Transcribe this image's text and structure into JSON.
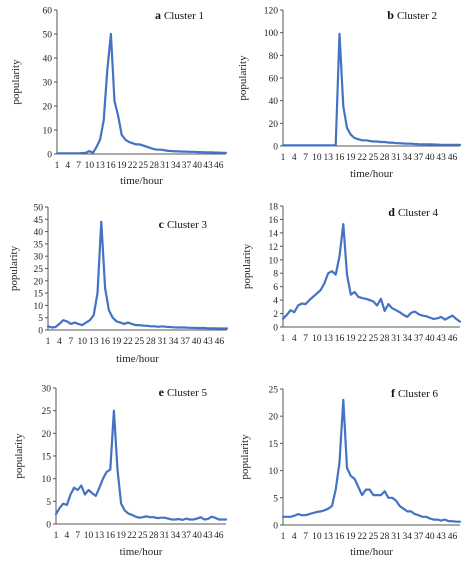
{
  "colors": {
    "line": "#4472C4",
    "axis": "#555555",
    "text": "#222222"
  },
  "chart_data": [
    {
      "type": "line",
      "letter": "a",
      "title": "Cluster 1",
      "xlabel": "time/hour",
      "ylabel": "popularity",
      "ylim": [
        0,
        60
      ],
      "yticks": [
        0,
        10,
        20,
        30,
        40,
        50,
        60
      ],
      "categories": [
        "1",
        "4",
        "7",
        "10",
        "13",
        "16",
        "19",
        "22",
        "25",
        "28",
        "31",
        "34",
        "37",
        "40",
        "43",
        "46"
      ],
      "x": [
        1,
        2,
        3,
        4,
        5,
        6,
        7,
        8,
        9,
        10,
        11,
        12,
        13,
        14,
        15,
        16,
        17,
        18,
        19,
        20,
        21,
        22,
        23,
        24,
        25,
        26,
        27,
        28,
        29,
        30,
        31,
        32,
        33,
        34,
        35,
        36,
        37,
        38,
        39,
        40,
        41,
        42,
        43,
        44,
        45,
        46,
        47,
        48
      ],
      "series": [
        {
          "values": [
            0.3,
            0.3,
            0.3,
            0.3,
            0.3,
            0.3,
            0.3,
            0.4,
            0.5,
            1.2,
            0.5,
            3,
            6,
            14,
            35,
            50,
            22,
            16,
            8,
            6,
            5,
            4.5,
            4,
            4,
            3.5,
            3,
            2.5,
            2,
            1.8,
            1.8,
            1.5,
            1.3,
            1.2,
            1.1,
            1.1,
            1,
            1,
            0.9,
            0.9,
            0.8,
            0.8,
            0.7,
            0.7,
            0.7,
            0.6,
            0.6,
            0.5,
            0.5
          ]
        }
      ]
    },
    {
      "type": "line",
      "letter": "b",
      "title": "Cluster 2",
      "xlabel": "time/hour",
      "ylabel": "popularity",
      "ylim": [
        0,
        120
      ],
      "yticks": [
        0,
        20,
        40,
        60,
        80,
        100,
        120
      ],
      "categories": [
        "1",
        "4",
        "7",
        "10",
        "13",
        "16",
        "19",
        "22",
        "25",
        "28",
        "31",
        "34",
        "37",
        "40",
        "43",
        "46"
      ],
      "x": [
        1,
        2,
        3,
        4,
        5,
        6,
        7,
        8,
        9,
        10,
        11,
        12,
        13,
        14,
        15,
        16,
        17,
        18,
        19,
        20,
        21,
        22,
        23,
        24,
        25,
        26,
        27,
        28,
        29,
        30,
        31,
        32,
        33,
        34,
        35,
        36,
        37,
        38,
        39,
        40,
        41,
        42,
        43,
        44,
        45,
        46,
        47,
        48
      ],
      "series": [
        {
          "values": [
            0.5,
            0.5,
            0.5,
            0.5,
            0.5,
            0.5,
            0.5,
            0.5,
            0.5,
            0.5,
            0.5,
            0.5,
            0.5,
            0.5,
            0.5,
            99,
            35,
            16,
            10,
            7,
            6,
            5,
            5,
            4.5,
            4,
            4,
            3.5,
            3.5,
            3,
            3,
            2.5,
            2.5,
            2.2,
            2,
            2,
            1.8,
            1.6,
            1.5,
            1.5,
            1.4,
            1.3,
            1.2,
            1.1,
            1.1,
            1,
            1,
            1,
            1
          ]
        }
      ]
    },
    {
      "type": "line",
      "letter": "c",
      "title": "Cluster 3",
      "xlabel": "time/hour",
      "ylabel": "popularity",
      "ylim": [
        0,
        50
      ],
      "yticks": [
        0,
        5,
        10,
        15,
        20,
        25,
        30,
        35,
        40,
        45,
        50
      ],
      "categories": [
        "1",
        "4",
        "7",
        "10",
        "13",
        "16",
        "19",
        "22",
        "25",
        "28",
        "31",
        "34",
        "37",
        "40",
        "43",
        "46"
      ],
      "x": [
        1,
        2,
        3,
        4,
        5,
        6,
        7,
        8,
        9,
        10,
        11,
        12,
        13,
        14,
        15,
        16,
        17,
        18,
        19,
        20,
        21,
        22,
        23,
        24,
        25,
        26,
        27,
        28,
        29,
        30,
        31,
        32,
        33,
        34,
        35,
        36,
        37,
        38,
        39,
        40,
        41,
        42,
        43,
        44,
        45,
        46,
        47,
        48
      ],
      "series": [
        {
          "values": [
            1.5,
            1,
            1.2,
            2.5,
            4,
            3.5,
            2.5,
            3,
            2.5,
            2,
            3,
            4,
            6,
            15,
            44,
            17,
            8,
            5,
            3.5,
            3,
            2.5,
            3,
            2.5,
            2,
            2,
            1.8,
            1.7,
            1.5,
            1.5,
            1.3,
            1.5,
            1.3,
            1.2,
            1.1,
            1,
            1,
            1,
            0.9,
            0.9,
            0.8,
            0.8,
            0.8,
            0.7,
            0.7,
            0.7,
            0.6,
            0.6,
            0.6
          ]
        }
      ]
    },
    {
      "type": "line",
      "letter": "d",
      "title": "Cluster 4",
      "xlabel": "",
      "ylabel": "popularity",
      "ylim": [
        0,
        18
      ],
      "yticks": [
        0,
        2,
        4,
        6,
        8,
        10,
        12,
        14,
        16,
        18
      ],
      "categories": [
        "1",
        "4",
        "7",
        "10",
        "13",
        "16",
        "19",
        "22",
        "25",
        "28",
        "31",
        "34",
        "37",
        "40",
        "43",
        "46"
      ],
      "x": [
        1,
        2,
        3,
        4,
        5,
        6,
        7,
        8,
        9,
        10,
        11,
        12,
        13,
        14,
        15,
        16,
        17,
        18,
        19,
        20,
        21,
        22,
        23,
        24,
        25,
        26,
        27,
        28,
        29,
        30,
        31,
        32,
        33,
        34,
        35,
        36,
        37,
        38,
        39,
        40,
        41,
        42,
        43,
        44,
        45,
        46,
        47,
        48
      ],
      "series": [
        {
          "values": [
            1.2,
            1.8,
            2.5,
            2.2,
            3.2,
            3.5,
            3.4,
            4,
            4.5,
            5,
            5.5,
            6.5,
            8,
            8.3,
            7.8,
            10.5,
            15.3,
            7.8,
            4.8,
            5.2,
            4.5,
            4.3,
            4.2,
            4,
            3.8,
            3.2,
            4.2,
            2.4,
            3.4,
            2.8,
            2.5,
            2.2,
            1.8,
            1.5,
            2.1,
            2.3,
            1.9,
            1.7,
            1.6,
            1.4,
            1.2,
            1.3,
            1.5,
            1.1,
            1.4,
            1.7,
            1.2,
            0.8
          ]
        }
      ]
    },
    {
      "type": "line",
      "letter": "e",
      "title": "Cluster 5",
      "xlabel": "time/hour",
      "ylabel": "popularity",
      "ylim": [
        0,
        30
      ],
      "yticks": [
        0,
        5,
        10,
        15,
        20,
        25,
        30
      ],
      "categories": [
        "1",
        "4",
        "7",
        "10",
        "13",
        "16",
        "19",
        "22",
        "25",
        "28",
        "31",
        "34",
        "37",
        "40",
        "43",
        "46"
      ],
      "x": [
        1,
        2,
        3,
        4,
        5,
        6,
        7,
        8,
        9,
        10,
        11,
        12,
        13,
        14,
        15,
        16,
        17,
        18,
        19,
        20,
        21,
        22,
        23,
        24,
        25,
        26,
        27,
        28,
        29,
        30,
        31,
        32,
        33,
        34,
        35,
        36,
        37,
        38,
        39,
        40,
        41,
        42,
        43,
        44,
        45,
        46,
        47,
        48
      ],
      "series": [
        {
          "values": [
            2.2,
            3.5,
            4.5,
            4.2,
            6.5,
            8,
            7.5,
            8.5,
            6.5,
            7.5,
            6.8,
            6.2,
            8,
            10,
            11.5,
            12,
            25,
            12,
            4.5,
            3,
            2.3,
            2,
            1.6,
            1.4,
            1.5,
            1.7,
            1.5,
            1.5,
            1.3,
            1.4,
            1.4,
            1.2,
            1,
            1,
            1.1,
            0.9,
            1.2,
            1,
            1,
            1.2,
            1.5,
            1,
            1.1,
            1.6,
            1.4,
            1,
            1,
            1
          ]
        }
      ]
    },
    {
      "type": "line",
      "letter": "f",
      "title": "Cluster 6",
      "xlabel": "time/hour",
      "ylabel": "popularity",
      "ylim": [
        0,
        25
      ],
      "yticks": [
        0,
        5,
        10,
        15,
        20,
        25
      ],
      "categories": [
        "1",
        "4",
        "7",
        "10",
        "13",
        "16",
        "19",
        "22",
        "25",
        "28",
        "31",
        "34",
        "37",
        "40",
        "43",
        "46"
      ],
      "x": [
        1,
        2,
        3,
        4,
        5,
        6,
        7,
        8,
        9,
        10,
        11,
        12,
        13,
        14,
        15,
        16,
        17,
        18,
        19,
        20,
        21,
        22,
        23,
        24,
        25,
        26,
        27,
        28,
        29,
        30,
        31,
        32,
        33,
        34,
        35,
        36,
        37,
        38,
        39,
        40,
        41,
        42,
        43,
        44,
        45,
        46,
        47,
        48
      ],
      "series": [
        {
          "values": [
            1.5,
            1.5,
            1.5,
            1.7,
            2,
            1.8,
            1.8,
            2,
            2.2,
            2.4,
            2.5,
            2.7,
            3,
            3.5,
            6.5,
            11.5,
            23,
            10.5,
            9,
            8.5,
            7,
            5.5,
            6.5,
            6.5,
            5.5,
            5.5,
            5.5,
            6.2,
            5,
            5,
            4.5,
            3.5,
            3,
            2.5,
            2.5,
            2,
            1.8,
            1.5,
            1.5,
            1.2,
            1,
            1,
            0.8,
            1,
            0.7,
            0.7,
            0.6,
            0.6
          ]
        }
      ]
    }
  ]
}
